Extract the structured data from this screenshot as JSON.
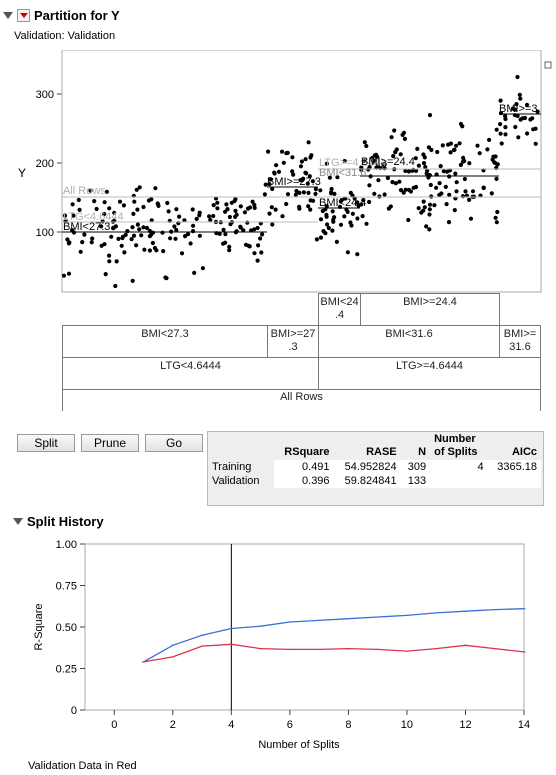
{
  "report": {
    "title": "Partition for Y",
    "subtitle": "Validation: Validation"
  },
  "partition_plot": {
    "y_axis_label": "Y",
    "y_ticks": [
      "100",
      "200",
      "300"
    ],
    "split_labels": {
      "all_rows": "All Rows",
      "ltg_low": "LTG<4.6444",
      "ltg_high": "LTG>=4.6444",
      "bmi_lt_27_3": "BMI<27.3",
      "bmi_ge_27_3": "BMI>=27.3",
      "bmi_lt_24_4": "BMI<24.4",
      "bmi_ge_24_4": "BMI>=24.4",
      "bmi_lt_31_6": "BMI<31.6",
      "bmi_ge_31_6": "BMI>=31.6",
      "bmi_ge_3_short": "BMI>=3"
    }
  },
  "tree": {
    "level3": {
      "left": "BMI<24\n.4",
      "right": "BMI>=24.4"
    },
    "level2": {
      "a": "BMI<27.3",
      "b": "BMI>=27\n.3",
      "c": "BMI<31.6",
      "d": "BMI>=\n31.6"
    },
    "level1": {
      "left": "LTG<4.6444",
      "right": "LTG>=4.6444"
    },
    "root": "All Rows"
  },
  "buttons": {
    "split": "Split",
    "prune": "Prune",
    "go": "Go"
  },
  "stats_table": {
    "headers": [
      "",
      "RSquare",
      "RASE",
      "N",
      "Number\nof Splits",
      "AICc"
    ],
    "rows": [
      {
        "label": "Training",
        "rsquare": "0.491",
        "rase": "54.952824",
        "n": "309",
        "splits": "4",
        "aicc": "3365.18"
      },
      {
        "label": "Validation",
        "rsquare": "0.396",
        "rase": "59.824841",
        "n": "133",
        "splits": "",
        "aicc": ""
      }
    ]
  },
  "split_history": {
    "title": "Split History",
    "footer": "Validation Data in Red",
    "colors": {
      "training": "#3a6fd8",
      "validation": "#d8344e"
    }
  },
  "chart_data": {
    "type": "line",
    "title": "",
    "xlabel": "Number of Splits",
    "ylabel": "R-Square",
    "xlim": [
      -1,
      14
    ],
    "ylim": [
      0,
      1
    ],
    "x_ticks": [
      0,
      2,
      4,
      6,
      8,
      10,
      12,
      14
    ],
    "y_ticks": [
      "0",
      "0.25",
      "0.50",
      "0.75",
      "1.00"
    ],
    "reference_x": 4,
    "x": [
      1,
      2,
      3,
      4,
      5,
      6,
      7,
      8,
      9,
      10,
      11,
      12,
      13,
      14
    ],
    "series": [
      {
        "key": "training",
        "values": [
          0.29,
          0.39,
          0.45,
          0.491,
          0.505,
          0.53,
          0.54,
          0.55,
          0.56,
          0.57,
          0.585,
          0.595,
          0.605,
          0.61
        ]
      },
      {
        "key": "validation",
        "values": [
          0.29,
          0.32,
          0.385,
          0.396,
          0.37,
          0.365,
          0.365,
          0.37,
          0.365,
          0.355,
          0.37,
          0.39,
          0.37,
          0.35
        ]
      }
    ]
  }
}
